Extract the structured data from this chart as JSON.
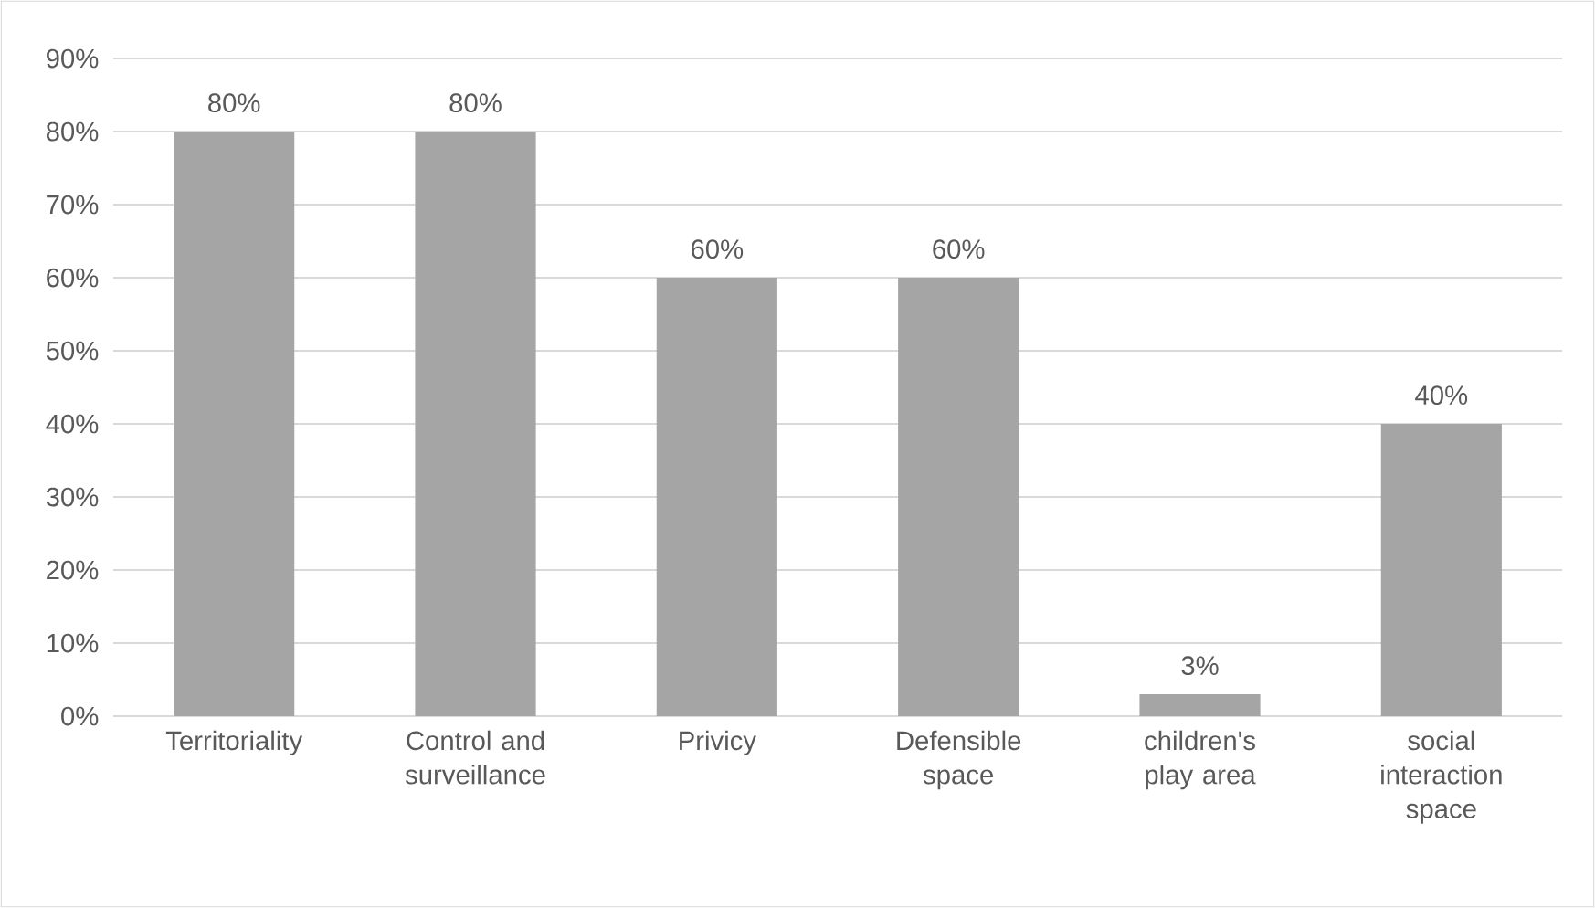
{
  "chart_data": {
    "type": "bar",
    "categories": [
      "Territoriality",
      "Control and surveillance",
      "Privicy",
      "Defensible space",
      "children's play area",
      "social interaction space"
    ],
    "values": [
      80,
      80,
      60,
      60,
      3,
      40
    ],
    "value_labels": [
      "80%",
      "80%",
      "60%",
      "60%",
      "3%",
      "40%"
    ],
    "color": "#a5a5a5",
    "ylim": [
      0,
      90
    ],
    "yticks": [
      {
        "value": 0,
        "label": "0%"
      },
      {
        "value": 10,
        "label": "10%"
      },
      {
        "value": 20,
        "label": "20%"
      },
      {
        "value": 30,
        "label": "30%"
      },
      {
        "value": 40,
        "label": "40%"
      },
      {
        "value": 50,
        "label": "50%"
      },
      {
        "value": 60,
        "label": "60%"
      },
      {
        "value": 70,
        "label": "70%"
      },
      {
        "value": 80,
        "label": "80%"
      },
      {
        "value": 90,
        "label": "90%"
      }
    ],
    "grid": "y"
  }
}
